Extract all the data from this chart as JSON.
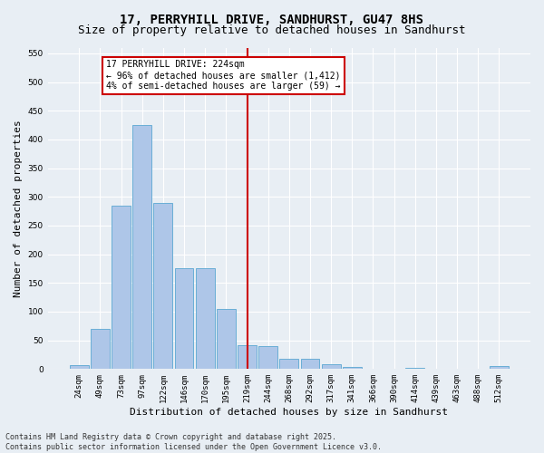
{
  "title": "17, PERRYHILL DRIVE, SANDHURST, GU47 8HS",
  "subtitle": "Size of property relative to detached houses in Sandhurst",
  "xlabel": "Distribution of detached houses by size in Sandhurst",
  "ylabel": "Number of detached properties",
  "categories": [
    "24sqm",
    "49sqm",
    "73sqm",
    "97sqm",
    "122sqm",
    "146sqm",
    "170sqm",
    "195sqm",
    "219sqm",
    "244sqm",
    "268sqm",
    "292sqm",
    "317sqm",
    "341sqm",
    "366sqm",
    "390sqm",
    "414sqm",
    "439sqm",
    "463sqm",
    "488sqm",
    "512sqm"
  ],
  "values": [
    7,
    70,
    285,
    425,
    290,
    175,
    175,
    105,
    42,
    40,
    18,
    18,
    8,
    3,
    1,
    0,
    2,
    0,
    0,
    0,
    5
  ],
  "bar_color": "#aec6e8",
  "bar_edge_color": "#6aaed6",
  "background_color": "#e8eef4",
  "grid_color": "#ffffff",
  "vline_x": 8,
  "vline_color": "#cc0000",
  "annotation_text": "17 PERRYHILL DRIVE: 224sqm\n← 96% of detached houses are smaller (1,412)\n4% of semi-detached houses are larger (59) →",
  "annotation_box_color": "#cc0000",
  "ylim": [
    0,
    560
  ],
  "yticks": [
    0,
    50,
    100,
    150,
    200,
    250,
    300,
    350,
    400,
    450,
    500,
    550
  ],
  "footer": "Contains HM Land Registry data © Crown copyright and database right 2025.\nContains public sector information licensed under the Open Government Licence v3.0.",
  "title_fontsize": 10,
  "subtitle_fontsize": 9,
  "xlabel_fontsize": 8,
  "ylabel_fontsize": 8,
  "tick_fontsize": 6.5,
  "footer_fontsize": 6,
  "annot_fontsize": 7
}
